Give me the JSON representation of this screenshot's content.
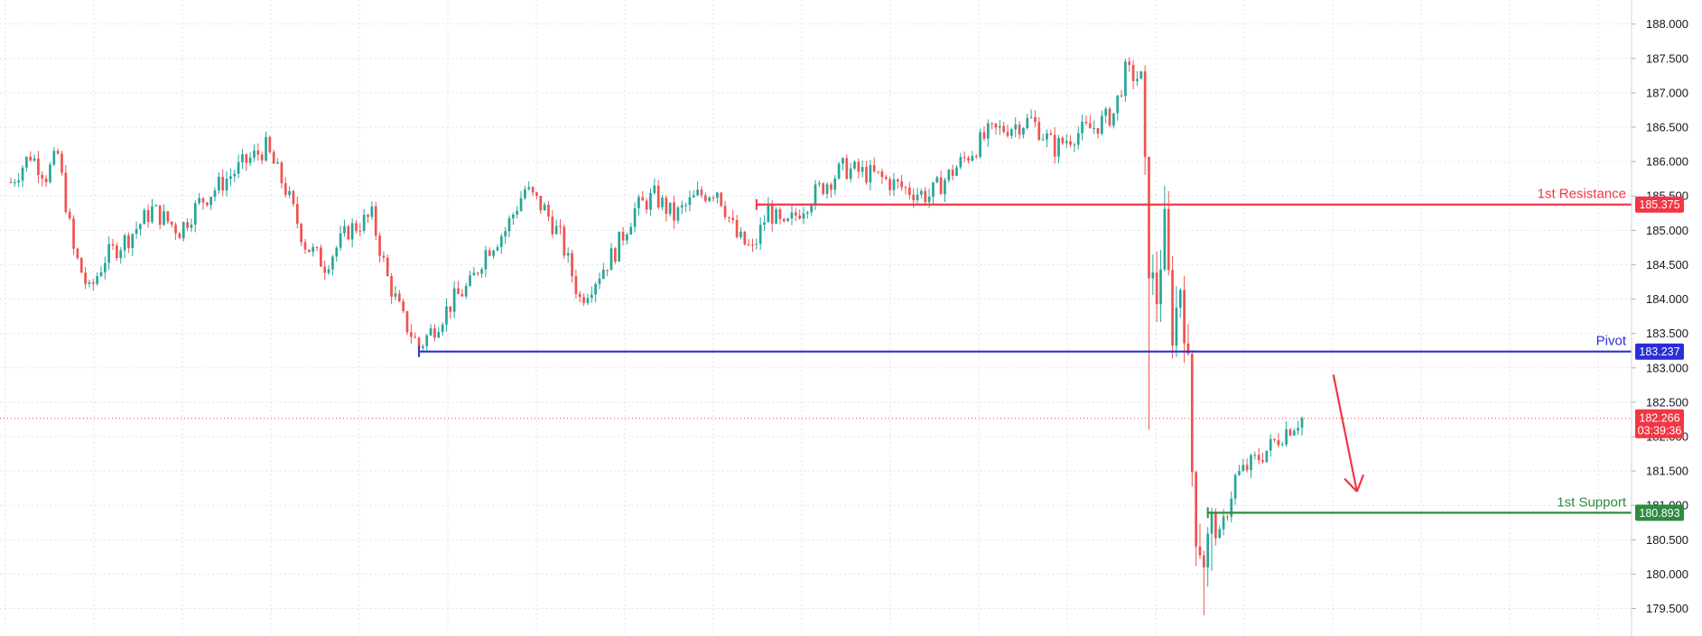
{
  "chart_data": {
    "type": "candlestick",
    "title": "",
    "xlabel": "",
    "ylabel": "",
    "ylim": [
      179.1,
      188.35
    ],
    "y_ticks": [
      "188.000",
      "187.500",
      "187.000",
      "186.500",
      "186.000",
      "185.500",
      "185.000",
      "184.500",
      "184.000",
      "183.500",
      "183.000",
      "182.500",
      "182.000",
      "181.500",
      "181.000",
      "180.500",
      "180.000",
      "179.500"
    ],
    "grid": true,
    "colors": {
      "up": "#26a69a",
      "down": "#ef5350",
      "resistance": "#f23645",
      "pivot": "#2a2ed8",
      "support": "#2e8b3e",
      "current_price": "#f23645",
      "grid": "#e0e3eb",
      "text": "#131722",
      "arrow": "#f23645"
    },
    "levels": [
      {
        "key": "resistance",
        "label": "1st Resistance",
        "value": 185.375,
        "value_text": "185.375",
        "start_index": 190
      },
      {
        "key": "pivot",
        "label": "Pivot",
        "value": 183.237,
        "value_text": "183.237",
        "start_index": 104
      },
      {
        "key": "support",
        "label": "1st Support",
        "value": 180.893,
        "value_text": "180.893",
        "start_index": 305
      }
    ],
    "current_price": {
      "value": 182.266,
      "value_text": "182.266",
      "countdown": "03:39:36"
    },
    "arrow": {
      "from": {
        "index": 337,
        "value": 182.9
      },
      "to": {
        "index": 343,
        "value": 181.2
      }
    },
    "anchors": [
      [
        0,
        185.7
      ],
      [
        5,
        186.1
      ],
      [
        9,
        185.8
      ],
      [
        12,
        186.1
      ],
      [
        16,
        184.7
      ],
      [
        20,
        184.1
      ],
      [
        24,
        184.6
      ],
      [
        30,
        184.9
      ],
      [
        36,
        185.3
      ],
      [
        43,
        185.0
      ],
      [
        48,
        185.4
      ],
      [
        54,
        185.7
      ],
      [
        60,
        186.0
      ],
      [
        65,
        186.2
      ],
      [
        70,
        185.6
      ],
      [
        75,
        184.8
      ],
      [
        80,
        184.5
      ],
      [
        86,
        185.0
      ],
      [
        92,
        185.2
      ],
      [
        96,
        184.3
      ],
      [
        100,
        183.7
      ],
      [
        104,
        183.3
      ],
      [
        108,
        183.6
      ],
      [
        113,
        184.0
      ],
      [
        117,
        184.2
      ],
      [
        121,
        184.7
      ],
      [
        126,
        185.0
      ],
      [
        131,
        185.6
      ],
      [
        136,
        185.3
      ],
      [
        140,
        184.9
      ],
      [
        145,
        184.0
      ],
      [
        149,
        184.3
      ],
      [
        154,
        184.7
      ],
      [
        159,
        185.3
      ],
      [
        164,
        185.5
      ],
      [
        169,
        185.2
      ],
      [
        175,
        185.5
      ],
      [
        180,
        185.6
      ],
      [
        185,
        184.9
      ],
      [
        189,
        184.7
      ],
      [
        193,
        185.3
      ],
      [
        197,
        185.0
      ],
      [
        201,
        185.3
      ],
      [
        206,
        185.6
      ],
      [
        212,
        185.9
      ],
      [
        220,
        185.8
      ],
      [
        228,
        185.6
      ],
      [
        234,
        185.5
      ],
      [
        239,
        185.8
      ],
      [
        244,
        186.1
      ],
      [
        249,
        186.4
      ],
      [
        254,
        186.5
      ],
      [
        260,
        186.6
      ],
      [
        266,
        186.2
      ],
      [
        271,
        186.4
      ],
      [
        276,
        186.5
      ],
      [
        281,
        186.7
      ],
      [
        284,
        187.3
      ],
      [
        288,
        187.2
      ],
      [
        290,
        184.5
      ],
      [
        292,
        184.0
      ],
      [
        294,
        185.1
      ],
      [
        296,
        183.5
      ],
      [
        298,
        184.2
      ],
      [
        300,
        183.0
      ],
      [
        301,
        181.5
      ],
      [
        302,
        180.6
      ],
      [
        304,
        180.2
      ],
      [
        306,
        180.8
      ],
      [
        308,
        180.5
      ],
      [
        312,
        181.4
      ],
      [
        316,
        181.6
      ],
      [
        320,
        181.8
      ],
      [
        325,
        182.1
      ],
      [
        329,
        182.27
      ]
    ]
  }
}
